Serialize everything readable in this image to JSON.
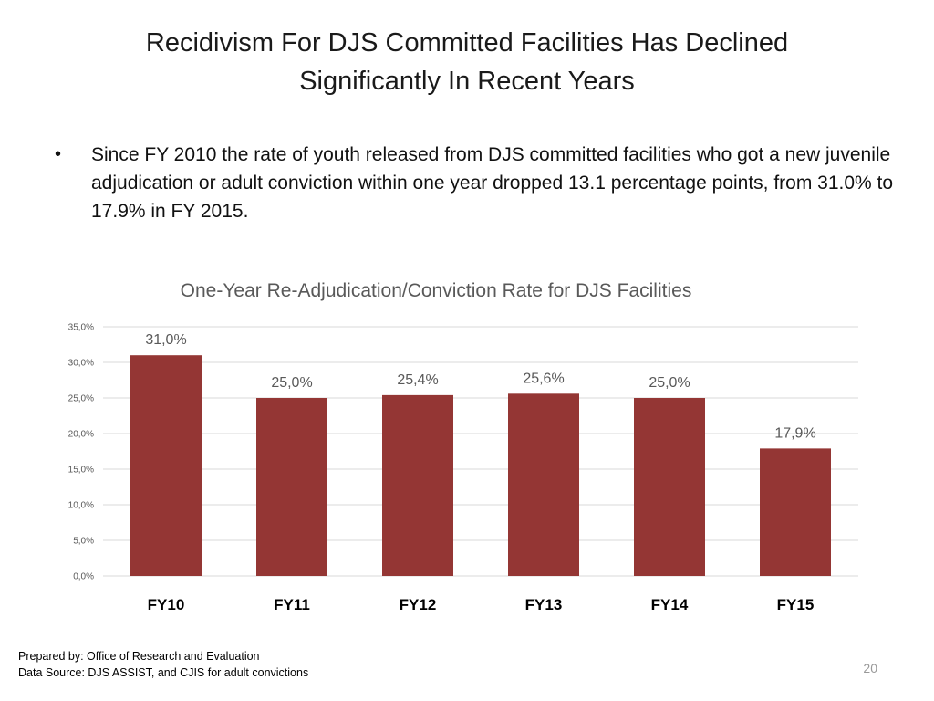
{
  "slide": {
    "title_line1": "Recidivism For DJS Committed Facilities Has Declined",
    "title_line2": "Significantly In Recent Years",
    "bullet_symbol": "•",
    "bullet_text": "Since FY 2010 the rate of youth released from DJS committed facilities who got a new juvenile adjudication or adult conviction within one year dropped 13.1 percentage points, from 31.0% to 17.9% in FY 2015.",
    "footer_line1": "Prepared by: Office of Research and Evaluation",
    "footer_line2": "Data Source: DJS ASSIST, and CJIS for adult convictions",
    "page_number": "20"
  },
  "colors": {
    "bar": "#943634",
    "grid": "#d9d9d9",
    "axis_text": "#595959",
    "title_text": "#595959",
    "label_text": "#595959",
    "category_text": "#000000"
  },
  "chart_data": {
    "type": "bar",
    "title": "One-Year Re-Adjudication/Conviction Rate for DJS Facilities",
    "categories": [
      "FY10",
      "FY11",
      "FY12",
      "FY13",
      "FY14",
      "FY15"
    ],
    "values": [
      31.0,
      25.0,
      25.4,
      25.6,
      25.0,
      17.9
    ],
    "data_labels": [
      "31,0%",
      "25,0%",
      "25,4%",
      "25,6%",
      "25,0%",
      "17,9%"
    ],
    "yticks": [
      0,
      5,
      10,
      15,
      20,
      25,
      30,
      35
    ],
    "ytick_labels": [
      "0,0%",
      "5,0%",
      "10,0%",
      "15,0%",
      "20,0%",
      "25,0%",
      "30,0%",
      "35,0%"
    ],
    "ylim": [
      0,
      35
    ],
    "xlabel": "",
    "ylabel": "",
    "grid": true
  }
}
